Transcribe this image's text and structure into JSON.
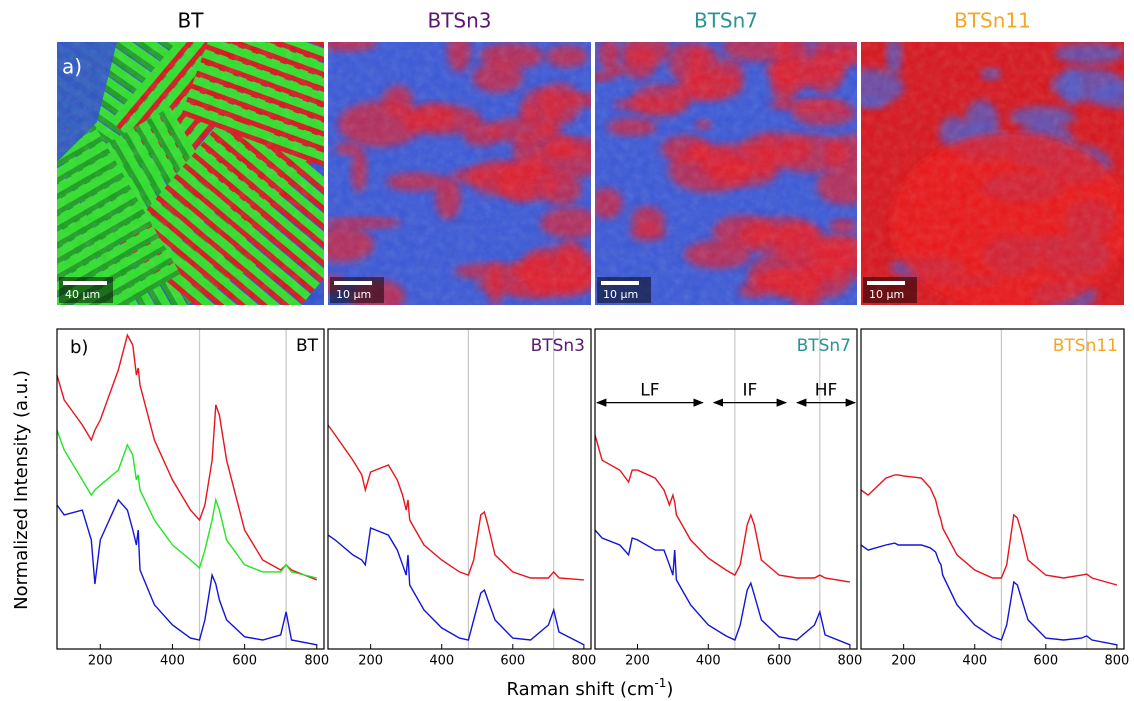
{
  "figure": {
    "panel_a": "a)",
    "panel_b": "b)",
    "ylabel": "Normalized Intensity (a.u.)",
    "xlabel": "Raman shift (cm",
    "xlabel_sup": "-1",
    "xlabel_end": ")"
  },
  "chart_data": [
    {
      "type": "line",
      "title": "BT",
      "title_color": "#000000",
      "label_color": "#000000",
      "scale_bar": "40 µm",
      "x": [
        80,
        100,
        150,
        175,
        185,
        200,
        250,
        275,
        290,
        300,
        305,
        310,
        350,
        400,
        450,
        475,
        490,
        510,
        520,
        530,
        550,
        600,
        650,
        700,
        715,
        730,
        800
      ],
      "series": [
        {
          "color": "#e8141c",
          "values": [
            85.6,
            77.8,
            70,
            65.3,
            68.4,
            71.6,
            87.2,
            98.1,
            95,
            85.6,
            87.8,
            82.5,
            65.3,
            52.8,
            43.4,
            40.3,
            45,
            59,
            76.3,
            73.1,
            59,
            37.2,
            27.8,
            24.7,
            26.3,
            24.7,
            21.6
          ]
        },
        {
          "color": "#22e622",
          "values": [
            68.4,
            62.2,
            52.8,
            48.1,
            49.7,
            51.2,
            55.9,
            63.8,
            60.6,
            52.8,
            54.4,
            49.7,
            40.3,
            32.5,
            27.8,
            25.3,
            30.9,
            40.3,
            46.6,
            43.4,
            34.1,
            26.3,
            24.1,
            24.1,
            26.3,
            24.1,
            22.2
          ]
        },
        {
          "color": "#1414d8",
          "values": [
            45,
            41.9,
            43.4,
            34.1,
            20.3,
            34.1,
            46.6,
            43.4,
            37.2,
            32.5,
            37.2,
            24.7,
            13.8,
            7.5,
            3.4,
            2.8,
            9.1,
            23.1,
            20.3,
            15.3,
            9.1,
            3.8,
            2.8,
            4.4,
            11.6,
            2.8,
            1.3
          ]
        }
      ],
      "xlim": [
        80,
        820
      ],
      "xticks": [
        200,
        400,
        600,
        800
      ],
      "ylim": [
        0,
        100
      ],
      "reference_lines": [
        475,
        715
      ]
    },
    {
      "type": "line",
      "title": "BTSn3",
      "title_color": "#5b1870",
      "label_color": "#5b1870",
      "scale_bar": "10 µm",
      "x": [
        80,
        100,
        150,
        175,
        185,
        200,
        250,
        275,
        290,
        300,
        305,
        310,
        350,
        400,
        450,
        475,
        490,
        510,
        520,
        530,
        550,
        600,
        650,
        700,
        715,
        730,
        800
      ],
      "series": [
        {
          "color": "#e8141c",
          "values": [
            70,
            66.9,
            59,
            54.4,
            49.7,
            55.3,
            57.5,
            52.8,
            48.1,
            43.4,
            46.6,
            40.3,
            32.5,
            27.8,
            24.1,
            23.1,
            27.8,
            41.9,
            42.8,
            38.8,
            29.4,
            24.1,
            22.2,
            22.2,
            24.1,
            22.2,
            21.6
          ]
        },
        {
          "color": "#1414d8",
          "values": [
            35.6,
            34.1,
            29.4,
            27.8,
            26.3,
            37.8,
            35.6,
            30.9,
            26.3,
            23.1,
            29.4,
            20,
            12.2,
            6.6,
            3.4,
            2.8,
            9.1,
            17.5,
            18.4,
            15.3,
            9.1,
            3.4,
            2.8,
            7.5,
            12.2,
            5.3,
            1.3
          ]
        }
      ],
      "xlim": [
        80,
        820
      ],
      "xticks": [
        200,
        400,
        600,
        800
      ],
      "ylim": [
        0,
        100
      ],
      "reference_lines": [
        475,
        715
      ]
    },
    {
      "type": "line",
      "title": "BTSn7",
      "title_color": "#2a9494",
      "label_color": "#2a9494",
      "scale_bar": "10 µm",
      "x": [
        80,
        100,
        150,
        175,
        185,
        200,
        250,
        275,
        290,
        300,
        305,
        310,
        350,
        400,
        450,
        475,
        490,
        510,
        520,
        530,
        550,
        600,
        650,
        700,
        715,
        730,
        800
      ],
      "series": [
        {
          "color": "#e8141c",
          "values": [
            66.9,
            59,
            55.9,
            52.2,
            55.9,
            55.9,
            53.4,
            49.7,
            45,
            48.1,
            45.9,
            41.9,
            34.1,
            28.4,
            24.7,
            23.1,
            26.3,
            38.8,
            41.9,
            38.8,
            27.8,
            23.1,
            22.2,
            22.2,
            23.1,
            22.2,
            20.9
          ]
        },
        {
          "color": "#1414d8",
          "values": [
            37.2,
            34.7,
            32.5,
            29.4,
            34.7,
            34.1,
            30.9,
            30.9,
            26.3,
            23.1,
            30.9,
            21.6,
            13.8,
            7.5,
            4.1,
            2.8,
            7.5,
            18.4,
            20.6,
            16.9,
            9.1,
            3.8,
            2.8,
            7.5,
            11.6,
            4.4,
            1.3
          ]
        }
      ],
      "xlim": [
        80,
        820
      ],
      "xticks": [
        200,
        400,
        600,
        800
      ],
      "ylim": [
        0,
        100
      ],
      "reference_lines": [
        475,
        715
      ],
      "annotations": [
        {
          "text": "LF",
          "x": [
            80,
            390
          ],
          "y": 77
        },
        {
          "text": "IF",
          "x": [
            410,
            625
          ],
          "y": 77
        },
        {
          "text": "HF",
          "x": [
            645,
            820
          ],
          "y": 77
        }
      ]
    },
    {
      "type": "line",
      "title": "BTSn11",
      "title_color": "#f5a623",
      "label_color": "#f5a623",
      "scale_bar": "10 µm",
      "x": [
        80,
        100,
        150,
        175,
        185,
        200,
        250,
        275,
        290,
        300,
        305,
        310,
        350,
        400,
        450,
        475,
        490,
        510,
        520,
        530,
        550,
        600,
        650,
        700,
        715,
        730,
        800
      ],
      "series": [
        {
          "color": "#e8141c",
          "values": [
            49.7,
            48.1,
            53.4,
            54.4,
            54.4,
            54.1,
            53.4,
            50.3,
            46.6,
            41.9,
            40.3,
            37.8,
            29.4,
            24.7,
            22.2,
            22.2,
            26.3,
            41.9,
            40.9,
            37.2,
            27.8,
            23.1,
            22.2,
            23.1,
            23.4,
            22.2,
            20
          ]
        },
        {
          "color": "#1414d8",
          "values": [
            32.5,
            30.9,
            32.5,
            33.1,
            32.5,
            32.5,
            32.5,
            31.6,
            30.3,
            27.2,
            26.3,
            23.1,
            13.8,
            7.5,
            3.8,
            2.8,
            7.5,
            20.9,
            20,
            16.3,
            9.1,
            3.4,
            2.8,
            3.4,
            4.1,
            2.8,
            1.3
          ]
        }
      ],
      "xlim": [
        80,
        820
      ],
      "xticks": [
        200,
        400,
        600,
        800
      ],
      "ylim": [
        0,
        100
      ],
      "reference_lines": [
        475,
        715
      ]
    }
  ]
}
